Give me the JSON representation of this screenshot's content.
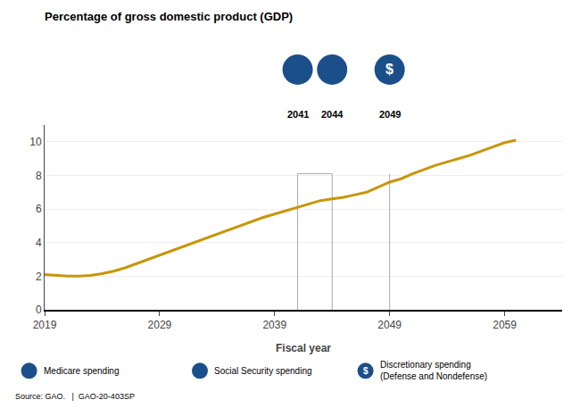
{
  "chart_data": {
    "type": "line",
    "title": "Percentage of gross domestic product (GDP)",
    "xlabel": "Fiscal year",
    "x": [
      2019,
      2020,
      2021,
      2022,
      2023,
      2024,
      2025,
      2026,
      2027,
      2028,
      2029,
      2030,
      2031,
      2032,
      2033,
      2034,
      2035,
      2036,
      2037,
      2038,
      2039,
      2040,
      2041,
      2042,
      2043,
      2044,
      2045,
      2046,
      2047,
      2048,
      2049,
      2050,
      2051,
      2052,
      2053,
      2054,
      2055,
      2056,
      2057,
      2058,
      2059,
      2060
    ],
    "values": [
      2.1,
      2.05,
      2.0,
      2.0,
      2.05,
      2.15,
      2.3,
      2.5,
      2.75,
      3.0,
      3.25,
      3.5,
      3.75,
      4.0,
      4.25,
      4.5,
      4.75,
      5.0,
      5.25,
      5.5,
      5.7,
      5.9,
      6.1,
      6.3,
      6.5,
      6.6,
      6.7,
      6.85,
      7.0,
      7.3,
      7.6,
      7.8,
      8.1,
      8.35,
      8.6,
      8.8,
      9.0,
      9.2,
      9.45,
      9.7,
      9.95,
      10.1
    ],
    "color": "#C8960C",
    "xlim": [
      2019,
      2064
    ],
    "ylim": [
      0,
      11
    ],
    "xticks": [
      2019,
      2029,
      2039,
      2049,
      2059
    ],
    "yticks": [
      0,
      2,
      4,
      6,
      8,
      10
    ],
    "grid": "y",
    "marker_lines": {
      "color": "#aaaaaa",
      "lines": [
        {
          "x": [
            2041,
            2041,
            2044,
            2044
          ],
          "y": [
            0,
            8.1,
            8.1,
            0
          ]
        },
        {
          "x": [
            2049,
            2049
          ],
          "y": [
            0,
            8.1
          ]
        }
      ]
    },
    "icons": {
      "color": "#1B4F8A",
      "items": [
        {
          "x": 2041,
          "label": "2041"
        },
        {
          "x": 2044,
          "label": "2044"
        },
        {
          "x": 2049,
          "label": "2049",
          "symbol": "$"
        }
      ]
    },
    "legend_items": [
      {
        "label": "Medicare spending"
      },
      {
        "label": "Social Security spending"
      },
      {
        "label": "Discretionary spending\n(Defense and Nondefense)",
        "symbol": "$"
      }
    ],
    "source": "Source: GAO.   |  GAO-20-403SP"
  }
}
